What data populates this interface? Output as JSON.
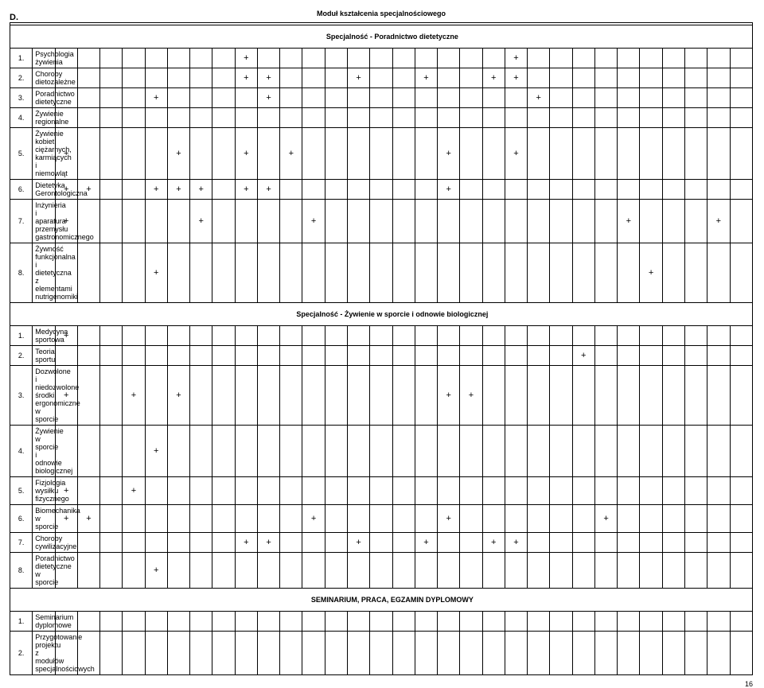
{
  "label_d": "D.",
  "main_title": "Moduł kształcenia specjalnościowego",
  "columns_count": 31,
  "sections": [
    {
      "title": "Specjalność - Poradnictwo dietetyczne",
      "rows": [
        {
          "num": "1.",
          "name": "Psychologia żywienia",
          "marks": [
            9,
            21
          ]
        },
        {
          "num": "2.",
          "name": "Choroby dietozależne",
          "marks": [
            9,
            10,
            14,
            17,
            20,
            21
          ]
        },
        {
          "num": "3.",
          "name": "Poradnictwo dietetyczne",
          "marks": [
            5,
            10,
            22
          ]
        },
        {
          "num": "4.",
          "name": "Żywienie regionalne",
          "marks": []
        },
        {
          "num": "5.",
          "name": "Żywienie kobiet ciężarnych, karmiących i niemowląt",
          "marks": [
            1,
            6,
            9,
            11,
            18,
            21
          ]
        },
        {
          "num": "6.",
          "name": "Dietetyka Gerontologiczna",
          "marks": [
            1,
            2,
            5,
            6,
            7,
            9,
            10,
            18
          ]
        },
        {
          "num": "7.",
          "name": "Inżynieria i aparatura przemysłu gastronomicznego",
          "marks": [
            1,
            7,
            12,
            26,
            30
          ]
        },
        {
          "num": "8.",
          "name": "Żywność funkcjonalna i dietetyczna z elementami nutrigenomiki",
          "marks": [
            5,
            27
          ]
        }
      ]
    },
    {
      "title": "Specjalność - Żywienie w sporcie i odnowie biologicznej",
      "rows": [
        {
          "num": "1.",
          "name": "Medycyna sportowa",
          "marks": [
            1
          ]
        },
        {
          "num": "2.",
          "name": "Teoria sportu",
          "marks": [
            24
          ]
        },
        {
          "num": "3.",
          "name": "Dozwolone i niedozwolone środki ergonomiczne w sporcie",
          "marks": [
            1,
            4,
            6,
            18,
            19
          ]
        },
        {
          "num": "4.",
          "name": "Żywienie w sporcie i odnowie biologicznej",
          "marks": [
            5
          ]
        },
        {
          "num": "5.",
          "name": "Fizjologia wysiłku fizycznego",
          "marks": [
            1,
            4
          ]
        },
        {
          "num": "6.",
          "name": "Biomechanika w sporcie",
          "marks": [
            1,
            2,
            12,
            18,
            25
          ]
        },
        {
          "num": "7.",
          "name": "Choroby cywilizacyjne",
          "marks": [
            9,
            10,
            14,
            17,
            20,
            21
          ]
        },
        {
          "num": "8.",
          "name": "Poradnictwo dietetyczne w sporcie",
          "marks": [
            5
          ]
        }
      ]
    },
    {
      "title": "SEMINARIUM, PRACA, EGZAMIN DYPLOMOWY",
      "rows": [
        {
          "num": "1.",
          "name": "Seminarium dyplomowe",
          "marks": []
        },
        {
          "num": "2.",
          "name": "Przygotowanie projektu z modułów specjalnościowych",
          "marks": []
        }
      ]
    }
  ],
  "page_number": "16"
}
